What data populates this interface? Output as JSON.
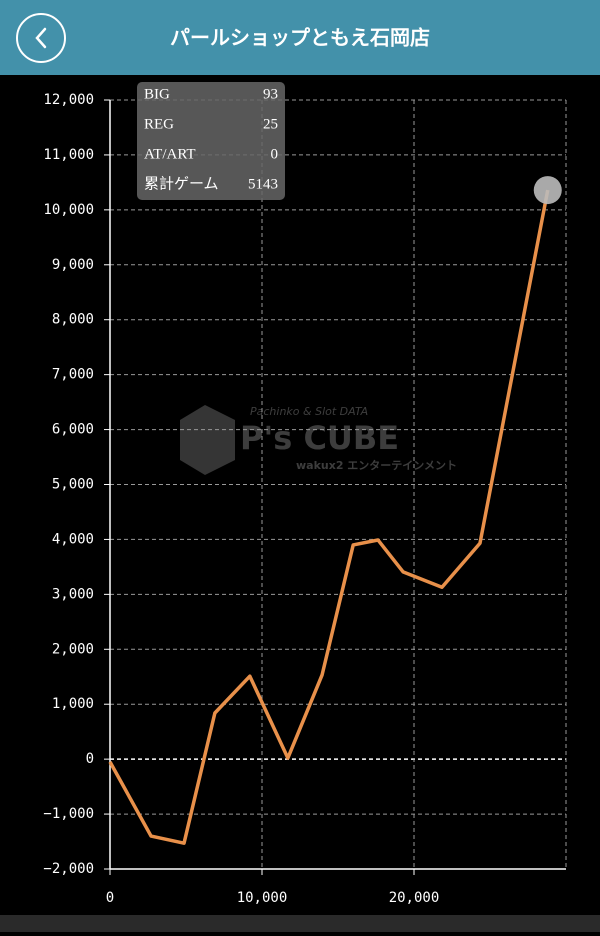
{
  "header": {
    "title": "パールショップともえ石岡店"
  },
  "stats": {
    "rows": [
      [
        "BIG",
        93
      ],
      [
        "REG",
        25
      ],
      [
        "AT/ART",
        0
      ],
      [
        "累計ゲーム",
        5143
      ]
    ]
  },
  "watermark": {
    "tagline": "Pachinko & Slot DATA",
    "brand": "P's CUBE",
    "company": "wakux2 エンターテインメント"
  },
  "chart_data": {
    "type": "line",
    "x": [
      0,
      2700,
      4870,
      6900,
      9200,
      11700,
      13950,
      16000,
      17630,
      19280,
      21840,
      24340,
      28800
    ],
    "series": [
      {
        "color": "#e8904a",
        "values": [
          -50,
          -1400,
          -1530,
          840,
          1510,
          20,
          1530,
          3900,
          3990,
          3410,
          3130,
          3930,
          10360
        ]
      }
    ],
    "xlim": [
      0,
      30000
    ],
    "xticks": [
      0,
      {
        "value": 10000,
        "label": "10,000"
      },
      {
        "value": 20000,
        "label": "20,000"
      }
    ],
    "ylim": [
      -2000,
      12000
    ],
    "yticks": [
      {
        "value": -2000,
        "label": "−2,000"
      },
      {
        "value": -1000,
        "label": "−1,000"
      },
      0,
      {
        "value": 1000,
        "label": "1,000"
      },
      {
        "value": 2000,
        "label": "2,000"
      },
      {
        "value": 3000,
        "label": "3,000"
      },
      {
        "value": 4000,
        "label": "4,000"
      },
      {
        "value": 5000,
        "label": "5,000"
      },
      {
        "value": 6000,
        "label": "6,000"
      },
      {
        "value": 7000,
        "label": "7,000"
      },
      {
        "value": 8000,
        "label": "8,000"
      },
      {
        "value": 9000,
        "label": "9,000"
      },
      {
        "value": 10000,
        "label": "10,000"
      },
      {
        "value": 11000,
        "label": "11,000"
      },
      {
        "value": 12000,
        "label": "12,000"
      }
    ],
    "grid": true
  }
}
